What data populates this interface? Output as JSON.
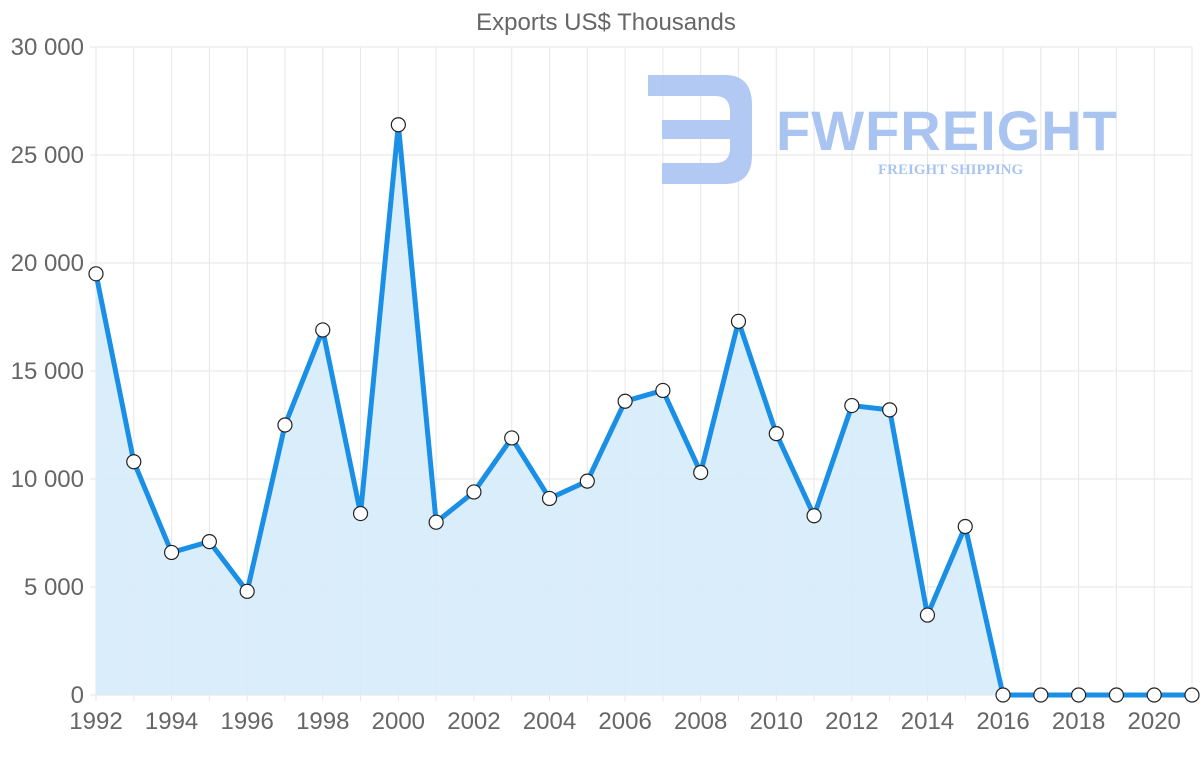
{
  "chart_data": {
    "type": "area",
    "title": "Exports US$ Thousands",
    "xlabel": "",
    "ylabel": "",
    "x": [
      1992,
      1993,
      1994,
      1995,
      1996,
      1997,
      1998,
      1999,
      2000,
      2001,
      2002,
      2003,
      2004,
      2005,
      2006,
      2007,
      2008,
      2009,
      2010,
      2011,
      2012,
      2013,
      2014,
      2015,
      2016,
      2017,
      2018,
      2019,
      2020,
      2021
    ],
    "series": [
      {
        "name": "Exports US$ Thousands",
        "color": "#1a8fe6",
        "fill": "#d6ebfb",
        "values": [
          19500,
          10800,
          6600,
          7100,
          4800,
          12500,
          16900,
          8400,
          26400,
          8000,
          9400,
          11900,
          9100,
          9900,
          13600,
          14100,
          10300,
          17300,
          12100,
          8300,
          13400,
          13200,
          3700,
          7800,
          0,
          0,
          0,
          0,
          0,
          0
        ]
      }
    ],
    "xlim": [
      1992,
      2021
    ],
    "ylim": [
      0,
      30000
    ],
    "x_ticks": [
      "1992",
      "1994",
      "1996",
      "1998",
      "2000",
      "2002",
      "2004",
      "2006",
      "2008",
      "2010",
      "2012",
      "2014",
      "2016",
      "2018",
      "2020"
    ],
    "y_ticks": [
      "0",
      "5 000",
      "10 000",
      "15 000",
      "20 000",
      "25 000",
      "30 000"
    ],
    "grid": true,
    "legend": "none"
  },
  "watermark": {
    "brand": "FWFREIGHT",
    "tagline": "FREIGHT SHIPPING",
    "color": "#aac4f2"
  }
}
